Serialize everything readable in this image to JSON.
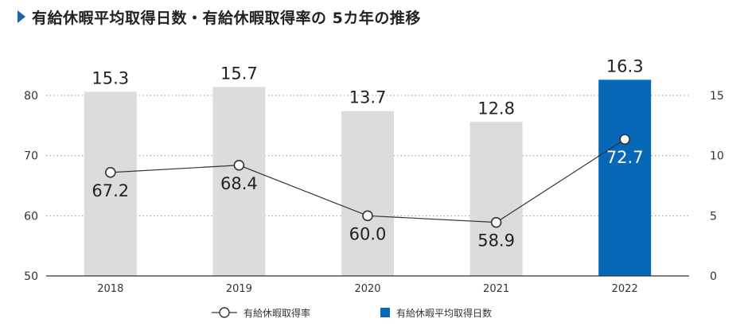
{
  "title": "有給休暇平均取得日数・有給休暇取得率の 5カ年の推移",
  "colors": {
    "accent": "#1a63b0",
    "bar_default": "#dcdcdc",
    "bar_highlight": "#0868b8",
    "line": "#333333",
    "grid": "#9a9a9a",
    "marker_fill": "#ffffff"
  },
  "legend": {
    "rate_label": "有給休暇取得率",
    "days_label": "有給休暇平均取得日数"
  },
  "chart_data": {
    "type": "bar",
    "categories": [
      "2018",
      "2019",
      "2020",
      "2021",
      "2022"
    ],
    "series": [
      {
        "name": "有給休暇平均取得日数",
        "type": "bar",
        "axis": "right",
        "values": [
          15.3,
          15.7,
          13.7,
          12.8,
          16.3
        ],
        "labels": [
          "15.3",
          "15.7",
          "13.7",
          "12.8",
          "16.3"
        ],
        "highlight_index": 4
      },
      {
        "name": "有給休暇取得率",
        "type": "line",
        "axis": "left",
        "values": [
          67.2,
          68.4,
          60.0,
          58.9,
          72.7
        ],
        "labels": [
          "67.2",
          "68.4",
          "60.0",
          "58.9",
          "72.7"
        ]
      }
    ],
    "y_left": {
      "range": [
        50,
        80
      ],
      "ticks": [
        "50",
        "60",
        "70",
        "80"
      ]
    },
    "y_right": {
      "range": [
        0,
        15
      ],
      "ticks": [
        "0",
        "5",
        "10",
        "15"
      ]
    },
    "grid": true,
    "legend_position": "bottom"
  }
}
